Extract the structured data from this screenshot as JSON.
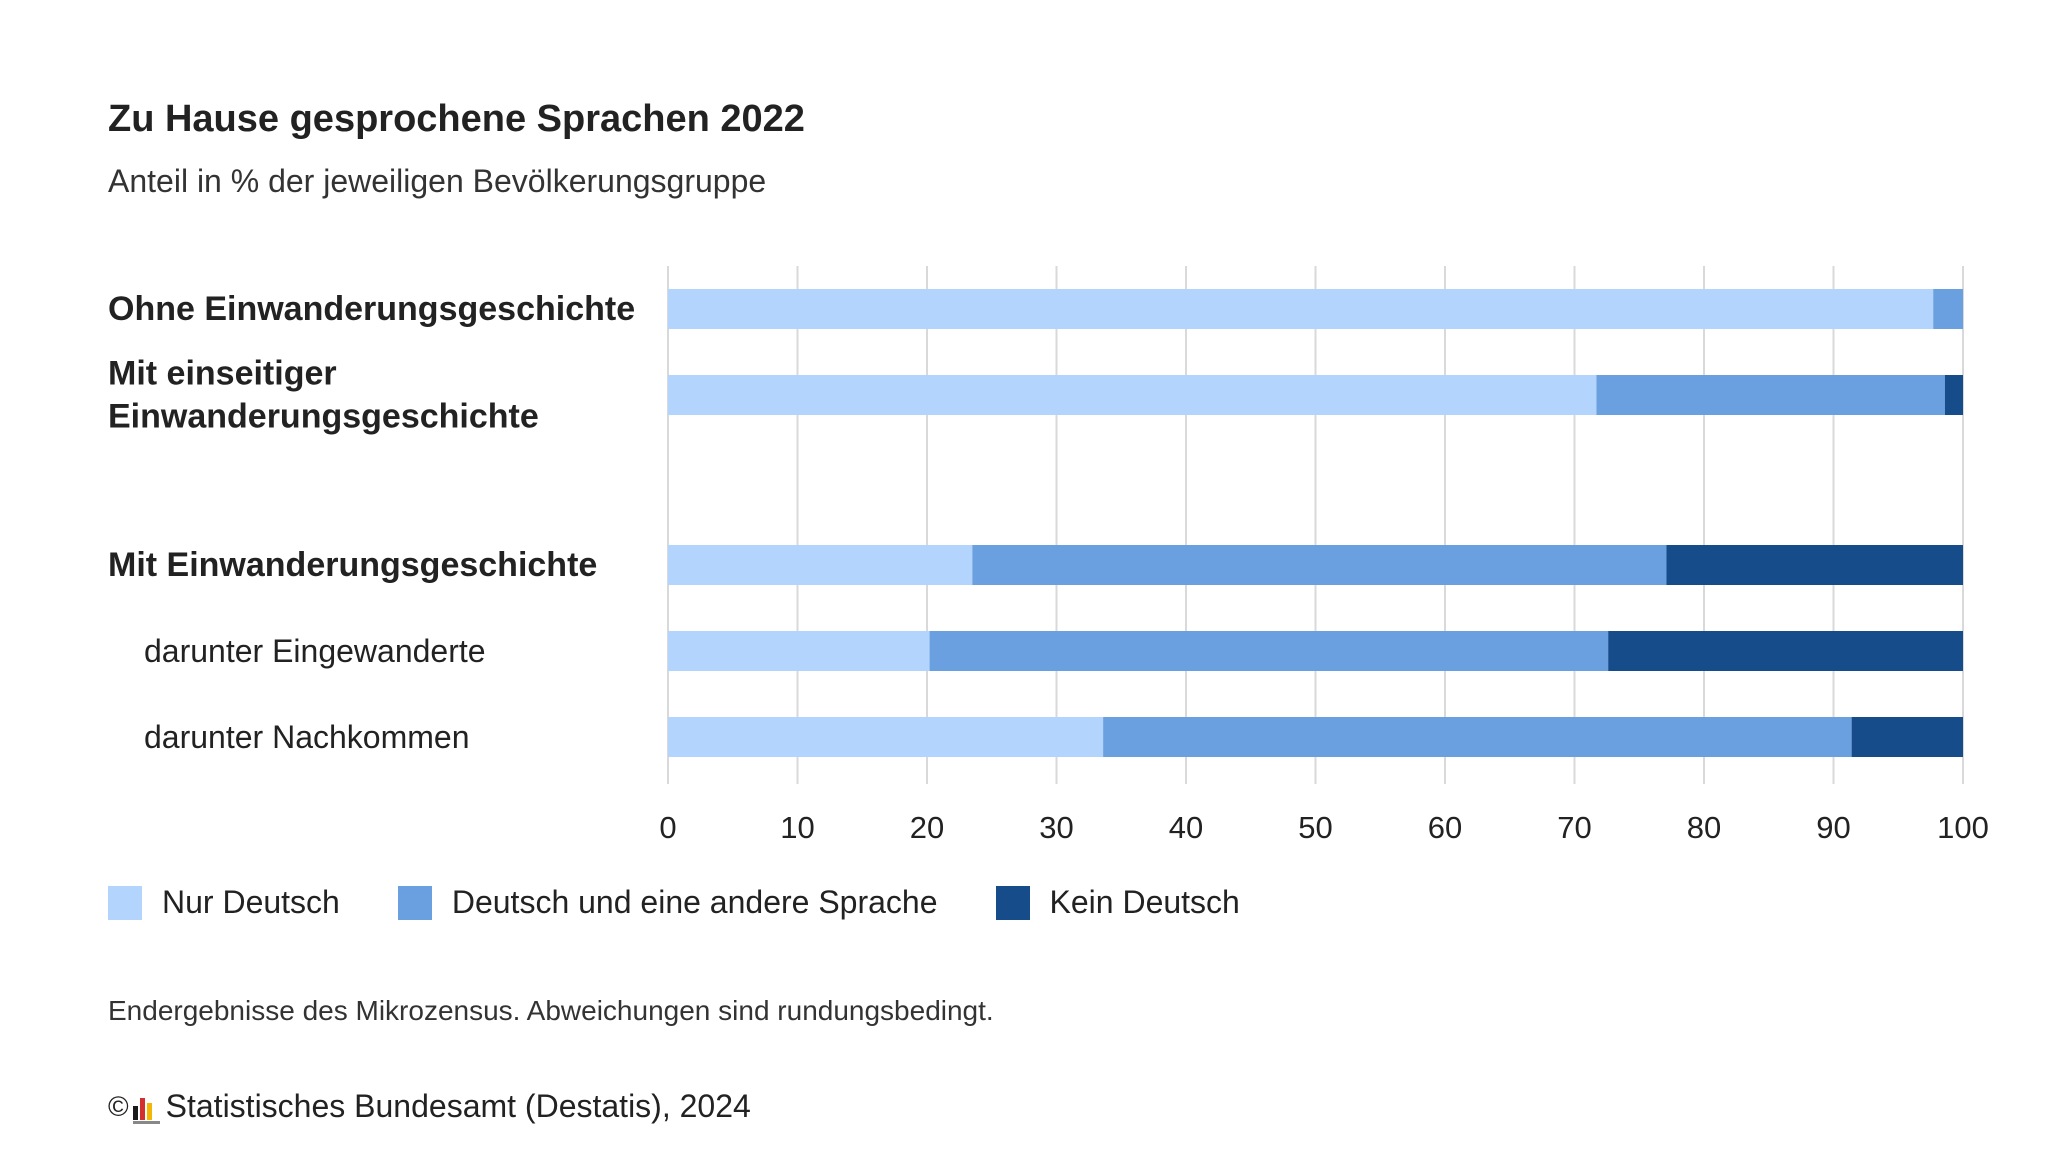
{
  "header": {
    "title": "Zu Hause gesprochene Sprachen 2022",
    "subtitle": "Anteil in % der jeweiligen Bevölkerungsgruppe"
  },
  "colors": {
    "nur_deutsch": "#b3d4fc",
    "deutsch_und_andere": "#6a9fe0",
    "kein_deutsch": "#174c8a",
    "grid": "#d9d9d9"
  },
  "chart_data": {
    "type": "bar",
    "orientation": "horizontal",
    "stacked": true,
    "title": "Zu Hause gesprochene Sprachen 2022",
    "subtitle": "Anteil in % der jeweiligen Bevölkerungsgruppe",
    "categories": [
      "Ohne Einwanderungsgeschichte",
      "Mit einseitiger Einwanderungsgeschichte",
      "Mit Einwanderungsgeschichte",
      "darunter Eingewanderte",
      "darunter Nachkommen"
    ],
    "category_label_lines": [
      [
        "Ohne Einwanderungsgeschichte"
      ],
      [
        "Mit einseitiger",
        "Einwanderungsgeschichte"
      ],
      [
        "Mit Einwanderungsgeschichte"
      ],
      [
        "darunter Eingewanderte"
      ],
      [
        "darunter Nachkommen"
      ]
    ],
    "category_bold": [
      true,
      true,
      true,
      false,
      false
    ],
    "series": [
      {
        "name": "Nur Deutsch",
        "values": [
          97.7,
          71.7,
          23.5,
          20.2,
          33.6
        ]
      },
      {
        "name": "Deutsch und eine andere Sprache",
        "values": [
          2.3,
          26.9,
          53.6,
          52.4,
          57.8
        ]
      },
      {
        "name": "Kein Deutsch",
        "values": [
          0.0,
          1.4,
          22.9,
          27.4,
          8.6
        ]
      }
    ],
    "xlim": [
      0,
      100
    ],
    "xticks": [
      0,
      10,
      20,
      30,
      40,
      50,
      60,
      70,
      80,
      90,
      100
    ],
    "grid": true,
    "legend_position": "bottom-left"
  },
  "footnote": "Endergebnisse des Mikrozensus. Abweichungen sind rundungsbedingt.",
  "source": {
    "copyright": "©",
    "text": "Statistisches Bundesamt (Destatis), 2024",
    "logo_icon": "destatis-logo-icon"
  }
}
